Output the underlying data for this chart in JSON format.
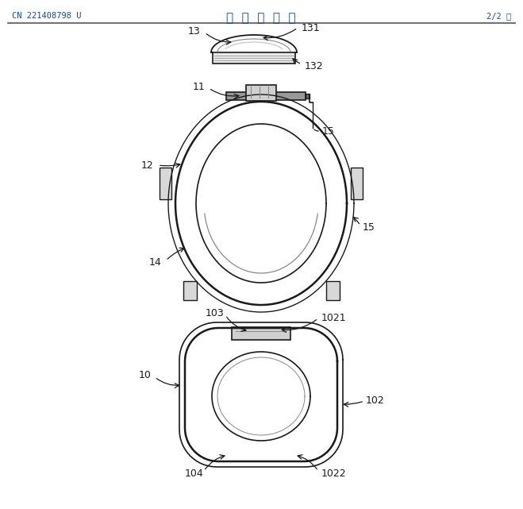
{
  "header_left": "CN 221408798 U",
  "header_center": "说  明  书  附  图",
  "header_right": "2/2 页",
  "bg_color": "#ffffff",
  "line_color": "#1a1a1a",
  "gray_color": "#888888",
  "light_gray": "#cccccc",
  "fig_width": 6.59,
  "fig_height": 6.41,
  "dpi": 100
}
